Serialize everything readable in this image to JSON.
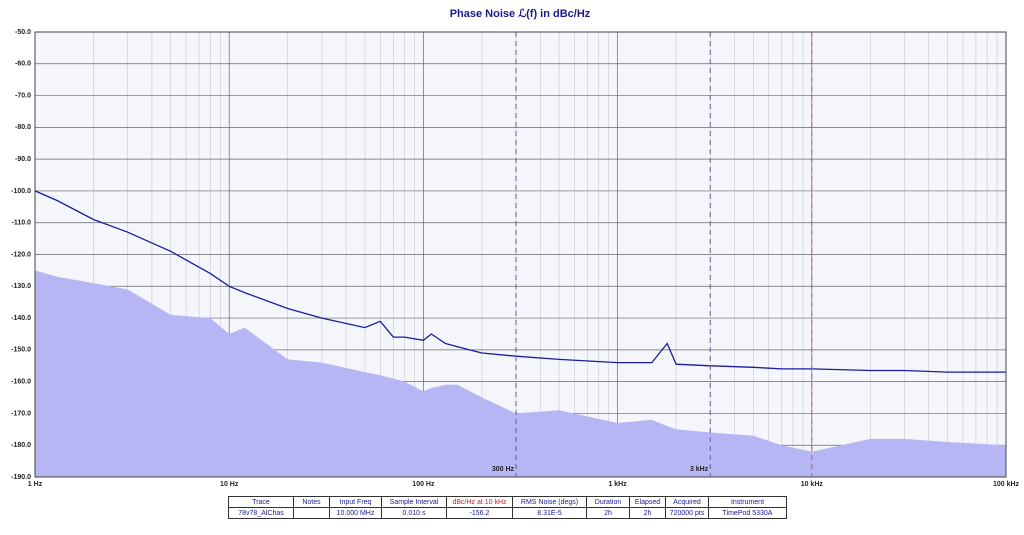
{
  "chart_data": {
    "type": "line",
    "title": "Phase Noise ℒ(f) in dBc/Hz",
    "log_x": true,
    "grid": true,
    "minor_grid": true,
    "xlim": [
      1,
      100000
    ],
    "ylim": [
      -190,
      -50
    ],
    "xticks": [
      {
        "value": 1,
        "label": "1 Hz"
      },
      {
        "value": 10,
        "label": "10 Hz"
      },
      {
        "value": 100,
        "label": "100 Hz"
      },
      {
        "value": 1000,
        "label": "1 kHz"
      },
      {
        "value": 10000,
        "label": "10 kHz"
      },
      {
        "value": 100000,
        "label": "100 kHz"
      }
    ],
    "yticks": [
      {
        "value": -50,
        "label": "-50.0"
      },
      {
        "value": -60,
        "label": "-60.0"
      },
      {
        "value": -70,
        "label": "-70.0"
      },
      {
        "value": -80,
        "label": "-80.0"
      },
      {
        "value": -90,
        "label": "-90.0"
      },
      {
        "value": -100,
        "label": "-100.0"
      },
      {
        "value": -110,
        "label": "-110.0"
      },
      {
        "value": -120,
        "label": "-120.0"
      },
      {
        "value": -130,
        "label": "-130.0"
      },
      {
        "value": -140,
        "label": "-140.0"
      },
      {
        "value": -150,
        "label": "-150.0"
      },
      {
        "value": -160,
        "label": "-160.0"
      },
      {
        "value": -170,
        "label": "-170.0"
      },
      {
        "value": -180,
        "label": "-180.0"
      },
      {
        "value": -190,
        "label": "-190.0"
      }
    ],
    "x": [
      1,
      1.3,
      2,
      3,
      5,
      8,
      10,
      12,
      20,
      30,
      50,
      60,
      70,
      80,
      100,
      110,
      130,
      150,
      200,
      300,
      500,
      1000,
      1500,
      1800,
      2000,
      3000,
      5000,
      7000,
      10000,
      20000,
      30000,
      50000,
      100000
    ],
    "series": [
      {
        "color": "#b6b6f4",
        "fill": true,
        "values": [
          -125,
          -127,
          -129,
          -131,
          -139,
          -140,
          -145,
          -143,
          -153,
          -154,
          -157,
          -158,
          -159,
          -160,
          -163,
          -162,
          -161,
          -161,
          -165,
          -170,
          -169,
          -173,
          -172,
          -174,
          -175,
          -176,
          -177,
          -180,
          -182,
          -178,
          -178,
          -179,
          -180
        ]
      },
      {
        "color": "#1c1c9c",
        "fill": false,
        "values": [
          -100,
          -103,
          -109,
          -113,
          -119,
          -126,
          -130,
          -132,
          -137,
          -140,
          -143,
          -141,
          -146,
          -146,
          -147,
          -145,
          -148,
          -149,
          -151,
          -152,
          -153,
          -154,
          -154,
          -148,
          -154.5,
          -155,
          -155.5,
          -156,
          -156,
          -156.5,
          -156.5,
          -157,
          -157
        ]
      }
    ],
    "markers": [
      {
        "x": 300,
        "label": "300 Hz",
        "color": "#6a5a9a"
      },
      {
        "x": 3000,
        "label": "3 kHz",
        "color": "#6a5a9a"
      },
      {
        "x": 10000,
        "color": "#d04a6a"
      }
    ]
  },
  "table": {
    "cells": [
      {
        "header": "Trace",
        "value": "78v78_AlChas"
      },
      {
        "header": "Notes"
      },
      {
        "header": "Input Freq",
        "value": "10.000 MHz"
      },
      {
        "header": "Sample Interval",
        "value": "0.010 s"
      },
      {
        "header": "dBc/Hz at 10 kHz",
        "value": "-156.2",
        "highlight": true
      },
      {
        "header": "RMS Noise (degs)",
        "value": "8.31E-5"
      },
      {
        "header": "Duration",
        "value": "2h"
      },
      {
        "header": "Elapsed",
        "value": "2h"
      },
      {
        "header": "Acquired",
        "value": "720000 pts"
      },
      {
        "header": "Instrument",
        "value": "TimePod 5330A"
      }
    ]
  }
}
